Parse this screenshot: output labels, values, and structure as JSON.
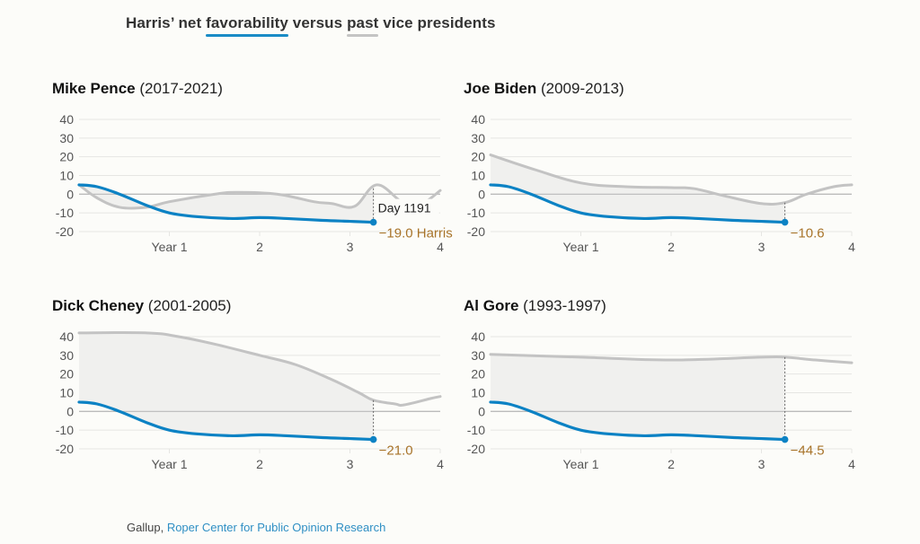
{
  "title": {
    "prefix": "Harris’ net ",
    "blue_word": "favorability",
    "middle": " versus ",
    "gray_word": "past",
    "suffix": " vice presidents"
  },
  "colors": {
    "harris_line": "#0c82c4",
    "past_vp_line": "#c3c3c3",
    "fill_between": "#f0f0ee",
    "end_label": "#a8742a",
    "gridline": "#e6e6e3",
    "zero_line": "#b9b9b9",
    "axis_text": "#555555",
    "background": "#fcfcf9"
  },
  "source": {
    "plain": "Gallup, ",
    "link": "Roper Center for Public Opinion Research"
  },
  "chart_data": [
    {
      "type": "line",
      "title": "Mike Pence",
      "subtitle": "(2017-2021)",
      "xlabel": "",
      "ylabel": "",
      "xlim": [
        0,
        4
      ],
      "ylim": [
        -20,
        40
      ],
      "yticks": [
        40,
        30,
        20,
        10,
        0,
        -10,
        -20
      ],
      "ytick_labels": [
        "40",
        "30",
        "20",
        "10",
        "0",
        "-10",
        "-20"
      ],
      "xticks": [
        1,
        2,
        3,
        4
      ],
      "xtick_labels": [
        "Year 1",
        "2",
        "3",
        "4"
      ],
      "grid": true,
      "marker_day_label": "Day 1191",
      "marker_x_years": 3.26,
      "end_label": "−19.0 Harris",
      "series": [
        {
          "name": "Mike Pence",
          "role": "past",
          "x": [
            0,
            0.2,
            0.45,
            0.75,
            1.0,
            1.5,
            1.75,
            2.2,
            2.6,
            2.8,
            3.05,
            3.3,
            3.6,
            3.8,
            4.0
          ],
          "y": [
            5,
            -2,
            -7,
            -7,
            -4,
            0,
            1,
            0,
            -4,
            -5,
            -6.5,
            5,
            -5,
            -5,
            2
          ]
        },
        {
          "name": "Kamala Harris",
          "role": "harris",
          "x": [
            0,
            0.2,
            0.45,
            0.75,
            1.0,
            1.3,
            1.7,
            2.0,
            2.3,
            2.7,
            3.0,
            3.26
          ],
          "y": [
            5,
            4,
            0,
            -6,
            -10,
            -12,
            -13,
            -12.5,
            -13,
            -14,
            -14.5,
            -15
          ]
        }
      ]
    },
    {
      "type": "line",
      "title": "Joe Biden",
      "subtitle": "(2009-2013)",
      "xlabel": "",
      "ylabel": "",
      "xlim": [
        0,
        4
      ],
      "ylim": [
        -20,
        40
      ],
      "yticks": [
        40,
        30,
        20,
        10,
        0,
        -10,
        -20
      ],
      "ytick_labels": [
        "40",
        "30",
        "20",
        "10",
        "0",
        "-10",
        "-20"
      ],
      "xticks": [
        1,
        2,
        3,
        4
      ],
      "xtick_labels": [
        "Year 1",
        "2",
        "3",
        "4"
      ],
      "grid": true,
      "marker_day_label": "",
      "marker_x_years": 3.26,
      "end_label": "−10.6",
      "series": [
        {
          "name": "Joe Biden",
          "role": "past",
          "x": [
            0,
            0.5,
            1.0,
            1.5,
            2.0,
            2.25,
            2.6,
            3.0,
            3.26,
            3.5,
            3.8,
            4.0
          ],
          "y": [
            21,
            13,
            6,
            4,
            3.5,
            3,
            -1,
            -5,
            -4.5,
            0,
            4,
            5
          ]
        },
        {
          "name": "Kamala Harris",
          "role": "harris",
          "x": [
            0,
            0.2,
            0.45,
            0.75,
            1.0,
            1.3,
            1.7,
            2.0,
            2.3,
            2.7,
            3.0,
            3.26
          ],
          "y": [
            5,
            4,
            0,
            -6,
            -10,
            -12,
            -13,
            -12.5,
            -13,
            -14,
            -14.5,
            -15
          ]
        }
      ]
    },
    {
      "type": "line",
      "title": "Dick Cheney",
      "subtitle": "(2001-2005)",
      "xlabel": "",
      "ylabel": "",
      "xlim": [
        0,
        4
      ],
      "ylim": [
        -20,
        40
      ],
      "yticks": [
        40,
        30,
        20,
        10,
        0,
        -10,
        -20
      ],
      "ytick_labels": [
        "40",
        "30",
        "20",
        "10",
        "0",
        "-10",
        "-20"
      ],
      "xticks": [
        1,
        2,
        3,
        4
      ],
      "xtick_labels": [
        "Year 1",
        "2",
        "3",
        "4"
      ],
      "grid": true,
      "marker_day_label": "",
      "marker_x_years": 3.26,
      "end_label": "−21.0",
      "series": [
        {
          "name": "Dick Cheney",
          "role": "past",
          "x": [
            0,
            0.75,
            1.1,
            1.5,
            2.0,
            2.4,
            2.8,
            3.1,
            3.26,
            3.5,
            3.6,
            3.9,
            4.0
          ],
          "y": [
            42,
            42,
            40,
            36,
            30,
            25,
            17,
            10,
            6,
            4,
            3.5,
            7,
            8
          ]
        },
        {
          "name": "Kamala Harris",
          "role": "harris",
          "x": [
            0,
            0.2,
            0.45,
            0.75,
            1.0,
            1.3,
            1.7,
            2.0,
            2.3,
            2.7,
            3.0,
            3.26
          ],
          "y": [
            5,
            4,
            0,
            -6,
            -10,
            -12,
            -13,
            -12.5,
            -13,
            -14,
            -14.5,
            -15
          ]
        }
      ]
    },
    {
      "type": "line",
      "title": "Al Gore",
      "subtitle": "(1993-1997)",
      "xlabel": "",
      "ylabel": "",
      "xlim": [
        0,
        4
      ],
      "ylim": [
        -20,
        40
      ],
      "yticks": [
        40,
        30,
        20,
        10,
        0,
        -10,
        -20
      ],
      "ytick_labels": [
        "40",
        "30",
        "20",
        "10",
        "0",
        "-10",
        "-20"
      ],
      "xticks": [
        1,
        2,
        3,
        4
      ],
      "xtick_labels": [
        "Year 1",
        "2",
        "3",
        "4"
      ],
      "grid": true,
      "marker_day_label": "",
      "marker_x_years": 3.26,
      "end_label": "−44.5",
      "series": [
        {
          "name": "Al Gore",
          "role": "past",
          "x": [
            0,
            1.0,
            2.0,
            3.0,
            3.26,
            3.6,
            4.0
          ],
          "y": [
            30.5,
            29,
            27.5,
            29,
            29,
            27.5,
            26
          ]
        },
        {
          "name": "Kamala Harris",
          "role": "harris",
          "x": [
            0,
            0.2,
            0.45,
            0.75,
            1.0,
            1.3,
            1.7,
            2.0,
            2.3,
            2.7,
            3.0,
            3.26
          ],
          "y": [
            5,
            4,
            0,
            -6,
            -10,
            -12,
            -13,
            -12.5,
            -13,
            -14,
            -14.5,
            -15
          ]
        }
      ]
    }
  ]
}
